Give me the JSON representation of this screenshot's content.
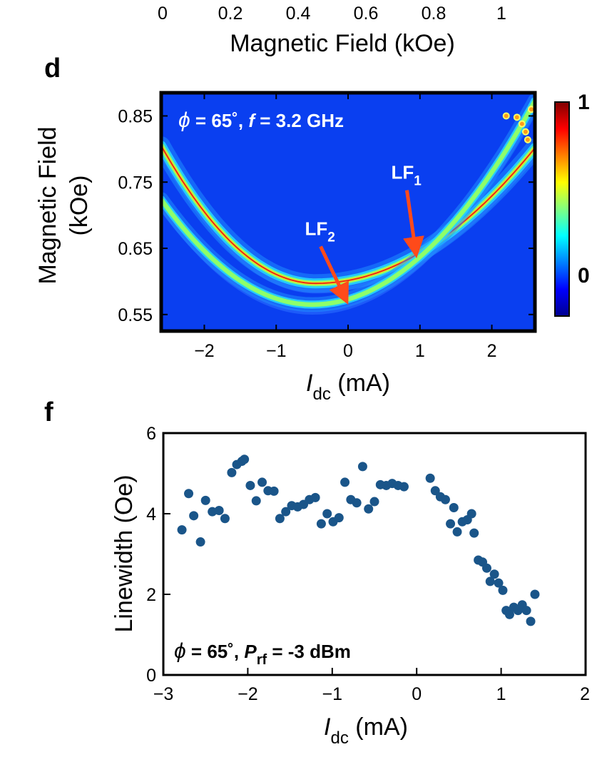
{
  "top_axis": {
    "ticks": [
      "0",
      "0.2",
      "0.4",
      "0.6",
      "0.8",
      "1"
    ],
    "xlabel": "Magnetic Field (kOe)"
  },
  "colormap": [
    "#00008f",
    "#0000ff",
    "#0080ff",
    "#00ffff",
    "#80ff80",
    "#ffff00",
    "#ff8000",
    "#ff0000",
    "#800000"
  ],
  "chart_data": [
    {
      "panel": "d",
      "type": "heatmap",
      "title": "",
      "annotation": {
        "phi": "ϕ",
        "rest": " = 65˚, ",
        "f": "f",
        "fval": " = 3.2 GHz"
      },
      "xlabel": {
        "main": "I",
        "sub": "dc",
        "unit": " (mA)"
      },
      "ylabel_lines": [
        "Magnetic Field",
        "(kOe)"
      ],
      "xlim": [
        -2.6,
        2.6
      ],
      "ylim": [
        0.525,
        0.885
      ],
      "xticks": [
        -2,
        -1,
        0,
        1,
        2
      ],
      "xtick_labels": [
        "−2",
        "−1",
        "0",
        "1",
        "2"
      ],
      "yticks": [
        0.55,
        0.65,
        0.75,
        0.85
      ],
      "ytick_labels": [
        "0.55",
        "0.65",
        "0.75",
        "0.85"
      ],
      "colorbar": {
        "min_label": "0",
        "max_label": "1"
      },
      "modes": [
        {
          "name": "LF1",
          "label": "LF",
          "sub": "1",
          "vertex_x": -0.45,
          "vertex_y": 0.597,
          "curv_left": 0.045,
          "curv_right": 0.022,
          "arrow_tip": [
            0.98,
            0.637
          ],
          "label_pos": [
            0.6,
            0.755
          ]
        },
        {
          "name": "LF2",
          "label": "LF",
          "sub": "2",
          "vertex_x": -0.5,
          "vertex_y": 0.565,
          "curv_left": 0.036,
          "curv_right": 0.032,
          "arrow_tip": [
            0.0,
            0.566
          ],
          "label_pos": [
            -0.6,
            0.67
          ]
        }
      ]
    },
    {
      "panel": "f",
      "type": "scatter",
      "title": "",
      "annotation": {
        "phi": "ϕ",
        "rest": " = 65˚, ",
        "p": "P",
        "psub": "rf",
        "pval": " = -3 dBm"
      },
      "xlabel": {
        "main": "I",
        "sub": "dc",
        "unit": " (mA)"
      },
      "ylabel": "Linewidth (Oe)",
      "xlim": [
        -3,
        2
      ],
      "ylim": [
        0,
        6
      ],
      "xticks": [
        -3,
        -2,
        -1,
        0,
        1,
        2
      ],
      "xtick_labels": [
        "−3",
        "−2",
        "−1",
        "0",
        "1",
        "2"
      ],
      "yticks": [
        0,
        2,
        4,
        6
      ],
      "ytick_labels": [
        "0",
        "2",
        "4",
        "6"
      ],
      "marker_color": "#1a5589",
      "points": [
        [
          -2.78,
          3.6
        ],
        [
          -2.7,
          4.5
        ],
        [
          -2.64,
          3.95
        ],
        [
          -2.56,
          3.3
        ],
        [
          -2.5,
          4.33
        ],
        [
          -2.42,
          4.05
        ],
        [
          -2.34,
          4.08
        ],
        [
          -2.27,
          3.88
        ],
        [
          -2.19,
          5.02
        ],
        [
          -2.13,
          5.22
        ],
        [
          -2.07,
          5.3
        ],
        [
          -2.04,
          5.35
        ],
        [
          -1.97,
          4.7
        ],
        [
          -1.9,
          4.32
        ],
        [
          -1.83,
          4.78
        ],
        [
          -1.76,
          4.57
        ],
        [
          -1.69,
          4.56
        ],
        [
          -1.62,
          3.88
        ],
        [
          -1.55,
          4.05
        ],
        [
          -1.48,
          4.2
        ],
        [
          -1.41,
          4.17
        ],
        [
          -1.34,
          4.23
        ],
        [
          -1.27,
          4.35
        ],
        [
          -1.2,
          4.4
        ],
        [
          -1.13,
          3.75
        ],
        [
          -1.06,
          4.0
        ],
        [
          -0.99,
          3.8
        ],
        [
          -0.92,
          3.9
        ],
        [
          -0.85,
          4.78
        ],
        [
          -0.78,
          4.35
        ],
        [
          -0.71,
          4.27
        ],
        [
          -0.64,
          5.17
        ],
        [
          -0.57,
          4.12
        ],
        [
          -0.5,
          4.3
        ],
        [
          -0.43,
          4.72
        ],
        [
          -0.36,
          4.7
        ],
        [
          -0.29,
          4.75
        ],
        [
          -0.22,
          4.7
        ],
        [
          -0.15,
          4.67
        ],
        [
          0.16,
          4.88
        ],
        [
          0.22,
          4.57
        ],
        [
          0.28,
          4.42
        ],
        [
          0.34,
          4.35
        ],
        [
          0.4,
          3.75
        ],
        [
          0.44,
          4.15
        ],
        [
          0.48,
          3.55
        ],
        [
          0.54,
          3.8
        ],
        [
          0.6,
          3.85
        ],
        [
          0.65,
          4.0
        ],
        [
          0.68,
          3.52
        ],
        [
          0.73,
          2.85
        ],
        [
          0.78,
          2.8
        ],
        [
          0.83,
          2.65
        ],
        [
          0.87,
          2.32
        ],
        [
          0.92,
          2.5
        ],
        [
          0.97,
          2.28
        ],
        [
          1.02,
          2.1
        ],
        [
          1.06,
          1.6
        ],
        [
          1.1,
          1.5
        ],
        [
          1.15,
          1.68
        ],
        [
          1.2,
          1.6
        ],
        [
          1.25,
          1.74
        ],
        [
          1.3,
          1.6
        ],
        [
          1.35,
          1.33
        ],
        [
          1.4,
          2.0
        ]
      ]
    }
  ]
}
